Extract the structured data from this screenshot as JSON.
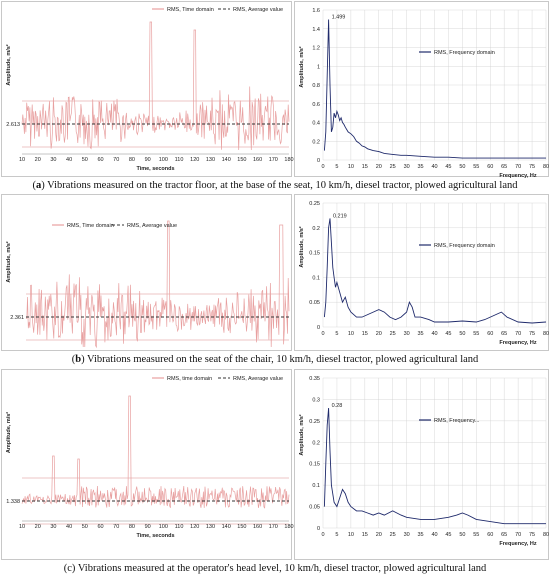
{
  "colors": {
    "time_series": "#e8a0a0",
    "average": "#333333",
    "freq_series": "#1f2a6b",
    "grid": "#cfcfcf",
    "band": "#c33c3c"
  },
  "chart_data": [
    {
      "type": "line",
      "panel": "a-time",
      "xlabel": "Time, seconds",
      "ylabel": "Amplitude, m/s²",
      "xlim": [
        10,
        180
      ],
      "xticks": [
        10,
        20,
        30,
        40,
        50,
        60,
        70,
        80,
        90,
        100,
        110,
        120,
        130,
        140,
        150,
        160,
        170,
        180
      ],
      "average_label": "2.613",
      "series": [
        {
          "name": "RMS, Time domain"
        },
        {
          "name": "RMS, Average value"
        }
      ],
      "legend": "top-center",
      "pattern": "time_a"
    },
    {
      "type": "line",
      "panel": "a-freq",
      "xlabel": "Frequency, Hz",
      "ylabel": "Amplitude, m/s²",
      "xlim": [
        0,
        80
      ],
      "ylim": [
        0,
        1.6
      ],
      "xticks": [
        0,
        5,
        10,
        15,
        20,
        25,
        30,
        35,
        40,
        45,
        50,
        55,
        60,
        65,
        70,
        75,
        80
      ],
      "yticks": [
        0,
        0.2,
        0.4,
        0.6,
        0.8,
        1,
        1.2,
        1.4,
        1.6
      ],
      "ytick_labels": [
        "0",
        "0.2",
        "0.4",
        "0.6",
        "0.8",
        "1",
        "1.2",
        "1.4",
        "1.6"
      ],
      "peak_label": "1.499",
      "series": [
        {
          "name": "RMS, Frequency domain"
        }
      ],
      "legend": "top-right",
      "x": [
        0.5,
        1,
        1.5,
        2,
        2.5,
        3,
        3.5,
        4,
        4.5,
        5,
        5.5,
        6,
        6.5,
        7,
        7.5,
        8,
        9,
        10,
        11,
        12,
        13,
        14,
        15,
        16,
        18,
        20,
        22,
        25,
        28,
        30,
        35,
        40,
        45,
        50,
        55,
        60,
        65,
        70,
        75,
        80
      ],
      "y": [
        0.1,
        0.3,
        0.9,
        1.499,
        0.8,
        0.3,
        0.35,
        0.5,
        0.45,
        0.52,
        0.48,
        0.42,
        0.45,
        0.4,
        0.38,
        0.35,
        0.3,
        0.28,
        0.25,
        0.2,
        0.18,
        0.15,
        0.14,
        0.12,
        0.1,
        0.09,
        0.07,
        0.06,
        0.05,
        0.05,
        0.04,
        0.03,
        0.03,
        0.02,
        0.02,
        0.02,
        0.02,
        0.02,
        0.02,
        0.02
      ]
    },
    {
      "type": "line",
      "panel": "b-time",
      "xlabel": "",
      "ylabel": "Amplitude, m/s²",
      "average_label": "2.361",
      "series": [
        {
          "name": "RMS, Time domain"
        },
        {
          "name": "RMS, Average value"
        }
      ],
      "legend": "top-left",
      "pattern": "time_b"
    },
    {
      "type": "line",
      "panel": "b-freq",
      "xlabel": "Frequency, Hz",
      "ylabel": "Amplitude, m/s²",
      "xlim": [
        0,
        80
      ],
      "ylim": [
        0,
        0.25
      ],
      "xticks": [
        0,
        5,
        10,
        15,
        20,
        25,
        30,
        35,
        40,
        45,
        50,
        55,
        60,
        65,
        70,
        75,
        80
      ],
      "yticks": [
        0,
        0.05,
        0.1,
        0.15,
        0.2,
        0.25
      ],
      "ytick_labels": [
        "0",
        "0.05",
        "0.1",
        "0.15",
        "0.2",
        "0.25"
      ],
      "peak_label": "0.219",
      "series": [
        {
          "name": "RMS, Frequency domain"
        }
      ],
      "legend": "top-right",
      "x": [
        0.5,
        1,
        1.5,
        2,
        2.5,
        3,
        3.5,
        4,
        4.5,
        5,
        6,
        7,
        8,
        9,
        10,
        12,
        14,
        16,
        18,
        20,
        22,
        24,
        26,
        28,
        30,
        31,
        32,
        33,
        35,
        38,
        40,
        45,
        50,
        55,
        58,
        60,
        62,
        64,
        66,
        70,
        75,
        80
      ],
      "y": [
        0.02,
        0.05,
        0.12,
        0.2,
        0.219,
        0.17,
        0.12,
        0.1,
        0.08,
        0.09,
        0.07,
        0.05,
        0.06,
        0.04,
        0.03,
        0.02,
        0.02,
        0.025,
        0.03,
        0.035,
        0.03,
        0.02,
        0.015,
        0.02,
        0.03,
        0.05,
        0.04,
        0.02,
        0.02,
        0.015,
        0.01,
        0.01,
        0.012,
        0.01,
        0.015,
        0.02,
        0.025,
        0.03,
        0.02,
        0.01,
        0.008,
        0.01
      ]
    },
    {
      "type": "line",
      "panel": "c-time",
      "xlabel": "Time, seconds",
      "ylabel": "Amplitude, m/s²",
      "xlim": [
        10,
        180
      ],
      "xticks": [
        10,
        20,
        30,
        40,
        50,
        60,
        70,
        80,
        90,
        100,
        110,
        120,
        130,
        140,
        150,
        160,
        170,
        180
      ],
      "average_label": "1.338",
      "series": [
        {
          "name": "RMS, time domain"
        },
        {
          "name": "RMS, Average value"
        }
      ],
      "legend": "top-right",
      "pattern": "time_c"
    },
    {
      "type": "line",
      "panel": "c-freq",
      "xlabel": "Frequency, Hz",
      "ylabel": "Amplitude, m/s²",
      "xlim": [
        0,
        80
      ],
      "ylim": [
        0,
        0.35
      ],
      "xticks": [
        0,
        5,
        10,
        15,
        20,
        25,
        30,
        35,
        40,
        45,
        50,
        55,
        60,
        65,
        70,
        75,
        80
      ],
      "yticks": [
        0,
        0.05,
        0.1,
        0.15,
        0.2,
        0.25,
        0.3,
        0.35
      ],
      "ytick_labels": [
        "0",
        "0.05",
        "0.1",
        "0.15",
        "0.2",
        "0.25",
        "0.3",
        "0.35"
      ],
      "peak_label": "0.28",
      "series": [
        {
          "name": "RMS, Frequency..."
        }
      ],
      "legend": "top-right",
      "x": [
        0.5,
        1,
        1.5,
        2,
        2.5,
        3,
        4,
        5,
        6,
        7,
        8,
        9,
        10,
        12,
        14,
        16,
        18,
        20,
        22,
        25,
        28,
        30,
        35,
        40,
        45,
        48,
        50,
        52,
        55,
        60,
        65,
        70,
        75,
        80
      ],
      "y": [
        0.05,
        0.15,
        0.24,
        0.28,
        0.18,
        0.1,
        0.06,
        0.05,
        0.07,
        0.09,
        0.08,
        0.06,
        0.05,
        0.04,
        0.04,
        0.035,
        0.03,
        0.035,
        0.03,
        0.04,
        0.03,
        0.025,
        0.02,
        0.02,
        0.025,
        0.03,
        0.035,
        0.03,
        0.02,
        0.015,
        0.01,
        0.01,
        0.01,
        0.01
      ]
    }
  ],
  "captions": {
    "a_letter": "a",
    "a_text": " Vibrations measured on the tractor floor, at the base of the seat, 10 km/h, diesel tractor, plowed agricultural land",
    "b_letter": "b",
    "b_text": " Vibrations measured on the seat of the chair, 10 km/h, diesel tractor, plowed agricultural land",
    "c_letter": "c",
    "c_text": " Vibrations measured at the operator's head level, 10 km/h, diesel tractor, plowed agricultural land"
  }
}
